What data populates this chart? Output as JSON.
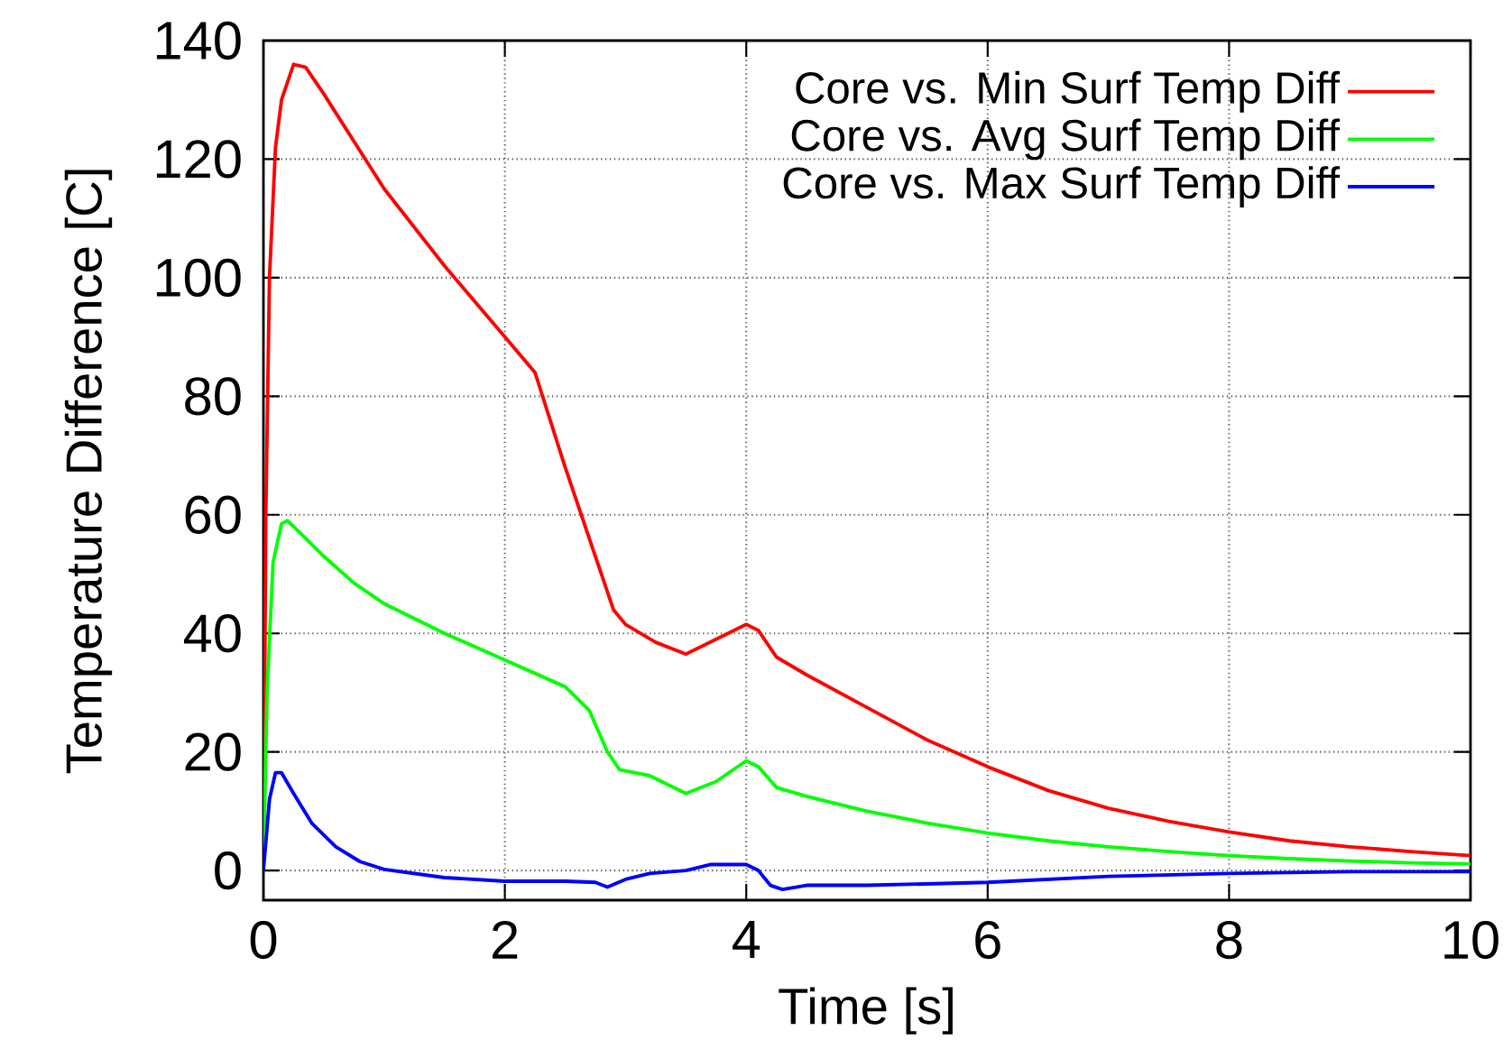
{
  "chart_data": {
    "type": "line",
    "xlabel": "Time [s]",
    "ylabel": "Temperature Difference [C]",
    "xlim": [
      0,
      10
    ],
    "ylim": [
      -5,
      140
    ],
    "xticks": [
      0,
      2,
      4,
      6,
      8,
      10
    ],
    "yticks": [
      0,
      20,
      40,
      60,
      80,
      100,
      120,
      140
    ],
    "grid": true,
    "legend": "top right",
    "marker": "none",
    "line_style": "solid",
    "series": [
      {
        "name": "Core vs. Min Surf Temp Diff",
        "color": "#ff0000",
        "x": [
          0,
          0.02,
          0.05,
          0.1,
          0.15,
          0.25,
          0.35,
          0.5,
          0.75,
          1.0,
          1.5,
          2.0,
          2.25,
          2.5,
          2.75,
          2.9,
          3.0,
          3.25,
          3.5,
          3.75,
          4.0,
          4.1,
          4.25,
          4.5,
          5,
          5.5,
          6,
          6.5,
          7,
          7.5,
          8,
          8.5,
          9,
          9.5,
          10
        ],
        "values": [
          0,
          60,
          100,
          122,
          130,
          136,
          135.5,
          131,
          123,
          115,
          102,
          90,
          84,
          68,
          53,
          44,
          41.5,
          38.5,
          36.5,
          39,
          41.5,
          40.5,
          36,
          33,
          27.5,
          22,
          17.5,
          13.5,
          10.5,
          8.3,
          6.5,
          5,
          4,
          3.2,
          2.5
        ]
      },
      {
        "name": "Core vs. Avg Surf Temp Diff",
        "color": "#00ff00",
        "x": [
          0,
          0.03,
          0.08,
          0.15,
          0.2,
          0.3,
          0.5,
          0.75,
          1,
          1.5,
          2,
          2.5,
          2.7,
          2.85,
          2.95,
          3.2,
          3.5,
          3.75,
          4.0,
          4.1,
          4.25,
          4.5,
          5,
          5.5,
          6,
          6.5,
          7,
          7.5,
          8,
          8.5,
          9,
          9.5,
          10
        ],
        "values": [
          0,
          30,
          52,
          58.5,
          59,
          57,
          53,
          48.5,
          45,
          40,
          35.5,
          31,
          27,
          20,
          17,
          16,
          13,
          15,
          18.5,
          17.5,
          14,
          12.5,
          10,
          8,
          6.3,
          5,
          4,
          3.2,
          2.5,
          2,
          1.6,
          1.3,
          1.1
        ]
      },
      {
        "name": "Core vs. Max Surf Temp Diff",
        "color": "#0000ff",
        "x": [
          0,
          0.05,
          0.1,
          0.15,
          0.25,
          0.4,
          0.6,
          0.8,
          1,
          1.5,
          2,
          2.5,
          2.75,
          2.85,
          3.0,
          3.2,
          3.5,
          3.7,
          4.0,
          4.1,
          4.2,
          4.3,
          4.5,
          5,
          6,
          7,
          8,
          9,
          10
        ],
        "values": [
          0,
          12,
          16.5,
          16.5,
          13,
          8,
          4,
          1.5,
          0.2,
          -1.2,
          -1.8,
          -1.8,
          -2,
          -2.8,
          -1.5,
          -0.5,
          0,
          1,
          1,
          0,
          -2.5,
          -3.2,
          -2.5,
          -2.5,
          -2,
          -1,
          -0.5,
          -0.2,
          -0.2
        ]
      }
    ]
  }
}
